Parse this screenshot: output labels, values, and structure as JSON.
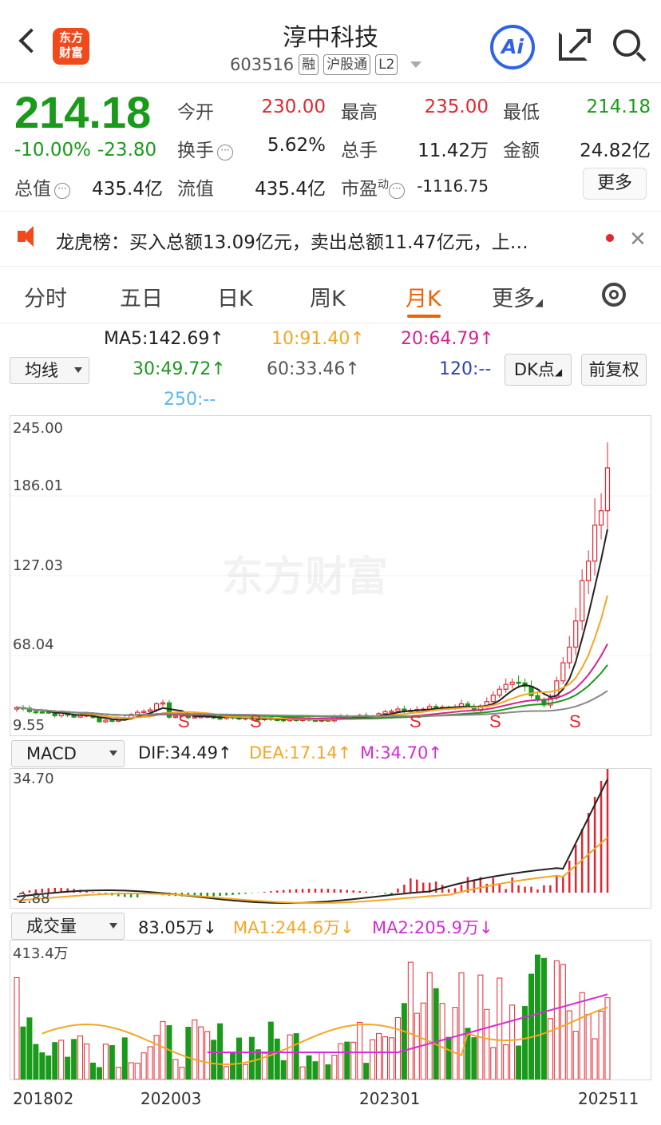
{
  "header": {
    "logo": [
      "东方",
      "财富"
    ],
    "title": "淳中科技",
    "code": "603516",
    "tags": [
      "融",
      "沪股通",
      "L2"
    ],
    "ai_label": "Ai"
  },
  "quote": {
    "price": "214.18",
    "change_pct": "-10.00%",
    "change": "-23.80",
    "fields": [
      {
        "label": "今开",
        "value": "230.00",
        "color": "red"
      },
      {
        "label": "最高",
        "value": "235.00",
        "color": "red"
      },
      {
        "label": "最低",
        "value": "214.18",
        "color": "green"
      },
      {
        "label": "换手",
        "value": "5.62%",
        "color": "dark"
      },
      {
        "label": "总手",
        "value": "11.42万",
        "color": "dark"
      },
      {
        "label": "金额",
        "value": "24.82亿",
        "color": "dark"
      },
      {
        "label": "总值",
        "value": "435.4亿",
        "color": "dark"
      },
      {
        "label": "流值",
        "value": "435.4亿",
        "color": "dark"
      },
      {
        "label": "市盈",
        "sup": "动",
        "value": "-1116.75",
        "color": "dark"
      }
    ],
    "more_label": "更多"
  },
  "notice": {
    "text": "龙虎榜：买入总额13.09亿元，卖出总额11.47亿元，上…"
  },
  "tabs": [
    "分时",
    "五日",
    "日K",
    "周K",
    "月K",
    "更多"
  ],
  "active_tab": "月K",
  "indicators": {
    "ma_selector": "均线",
    "ma": [
      {
        "label": "MA5:142.69↑",
        "color": "#222222"
      },
      {
        "label": "10:91.40↑",
        "color": "#f5a623"
      },
      {
        "label": "20:64.79↑",
        "color": "#d6248f"
      },
      {
        "label": "30:49.72↑",
        "color": "#1a9a1a"
      },
      {
        "label": "60:33.46↑",
        "color": "#555555"
      },
      {
        "label": "120:--",
        "color": "#2a3fbf"
      },
      {
        "label": "250:--",
        "color": "#5ab4f0"
      }
    ],
    "dk_button": "DK点",
    "adjust_button": "前复权"
  },
  "kline": {
    "y_labels": [
      "245.00",
      "186.01",
      "127.03",
      "68.04",
      "9.55"
    ],
    "signal_label": "S",
    "watermark": "东方财富"
  },
  "macd": {
    "selector": "MACD",
    "dif": "DIF:34.49↑",
    "dea": "DEA:17.14↑",
    "m": "M:34.70↑",
    "y_top": "34.70",
    "y_bottom": "-2.88"
  },
  "volume": {
    "selector": "成交量",
    "value": "83.05万↓",
    "ma1": "MA1:244.6万↓",
    "ma2": "MA2:205.9万↓",
    "y_top": "413.4万"
  },
  "x_labels": [
    "201802",
    "202003",
    "202301",
    "202511"
  ],
  "colors": {
    "up": "#e3262f",
    "down": "#1a9a1a",
    "accent": "#e8630a"
  }
}
